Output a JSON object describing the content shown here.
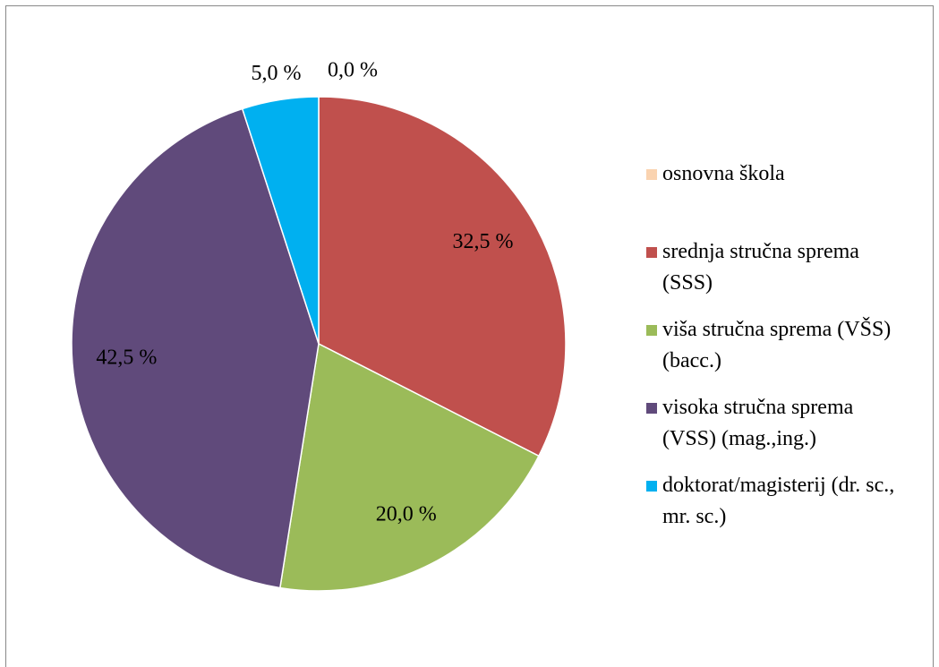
{
  "chart_data": {
    "type": "pie",
    "categories": [
      "osnovna škola",
      "srednja stručna sprema (SSS)",
      "viša stručna sprema (VŠS) (bacc.)",
      "visoka stručna sprema (VSS) (mag.,ing.)",
      "doktorat/magisterij (dr. sc., mr. sc.)"
    ],
    "values": [
      0,
      32.5,
      20,
      42.5,
      5
    ],
    "value_labels": [
      "0,0 %",
      "32,5 %",
      "20,0 %",
      "42,5 %",
      "5,0 %"
    ],
    "colors": [
      "#fad3b0",
      "#c0504d",
      "#9bbb59",
      "#604a7b",
      "#00b0f0"
    ],
    "legend": "right"
  }
}
